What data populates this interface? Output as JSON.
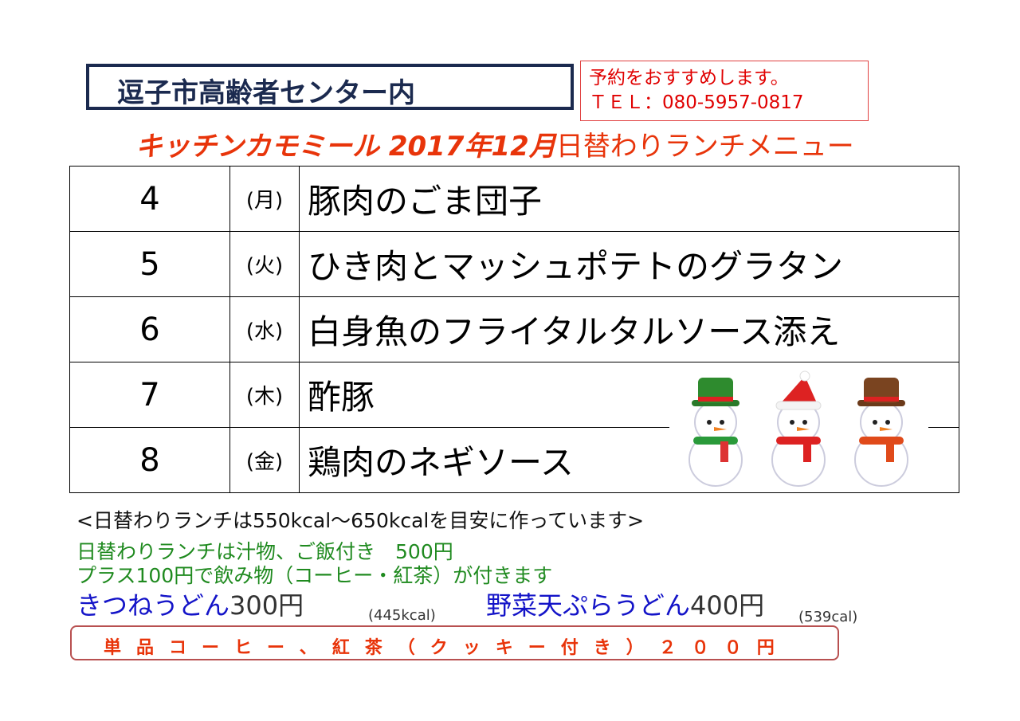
{
  "header": {
    "venue": "逗子市高齢者センター内",
    "reservation_note": "予約をおすすめします。",
    "phone": "ＴＥＬ：080-5957-0817",
    "title_shop": "キッチンカモミール 2017年12月",
    "title_menu": "日替わりランチメニュー"
  },
  "menu": [
    {
      "day": "4",
      "weekday": "(月)",
      "dish": "豚肉のごま団子"
    },
    {
      "day": "5",
      "weekday": "(火)",
      "dish": "ひき肉とマッシュポテトのグラタン"
    },
    {
      "day": "6",
      "weekday": "(水)",
      "dish": "白身魚のフライタルタルソース添え"
    },
    {
      "day": "7",
      "weekday": "(木)",
      "dish": "酢豚"
    },
    {
      "day": "8",
      "weekday": "(金)",
      "dish": "鶏肉のネギソース"
    }
  ],
  "notes": {
    "calories": "<日替わりランチは550kcal～650kcalを目安に作っています>",
    "lunch_price": "日替わりランチは汁物、ご飯付き　500円",
    "drink": "プラス100円で飲み物（コーヒー・紅茶）が付きます",
    "udon1_name": "きつねうどん",
    "udon1_price": "300円",
    "udon1_kcal": "(445kcal)",
    "udon2_name": "野菜天ぷらうどん",
    "udon2_price": "400円",
    "udon2_kcal": "(539cal)",
    "cafe": "単品コーヒー、紅茶（クッキー付き）２００円"
  },
  "decoration": {
    "icon": "snowmen-illustration"
  }
}
